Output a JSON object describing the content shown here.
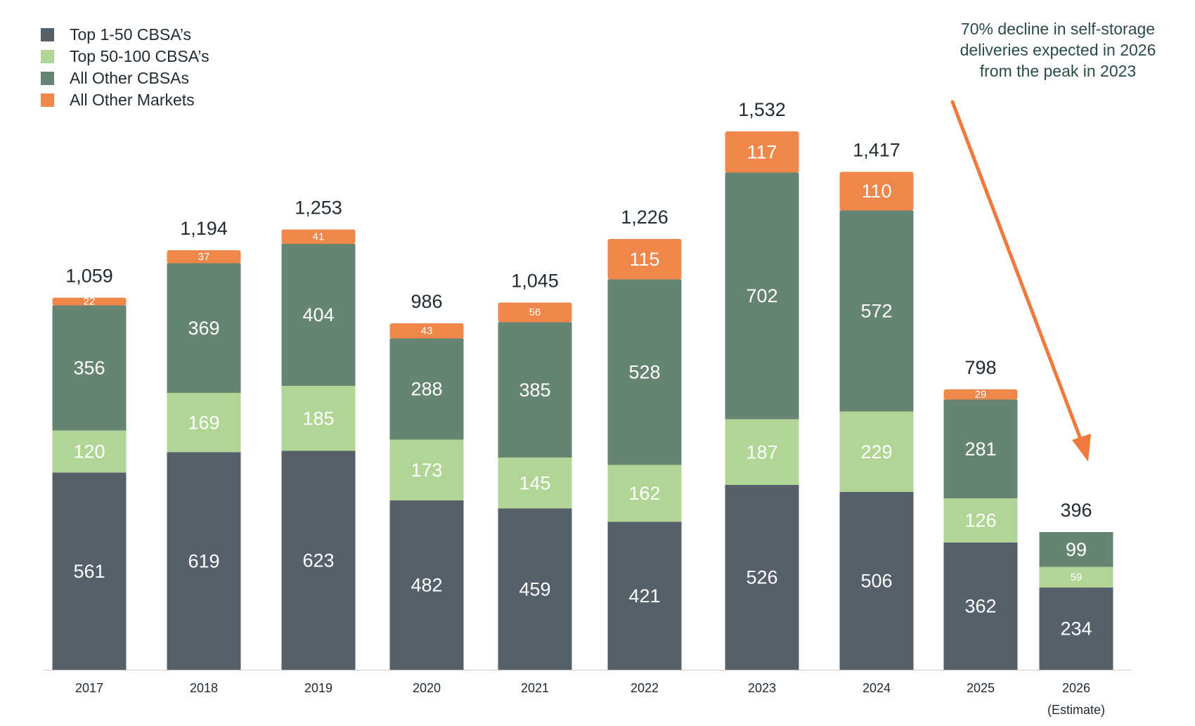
{
  "chart_data": {
    "type": "bar",
    "stacked": true,
    "title": "",
    "xlabel": "",
    "ylabel": "",
    "ylim": [
      0,
      1700
    ],
    "grid": false,
    "legend_position": "top-left",
    "categories": [
      "2017",
      "2018",
      "2019",
      "2020",
      "2021",
      "2022",
      "2023",
      "2024",
      "2025",
      "2026"
    ],
    "category_sublabels": [
      "",
      "",
      "",
      "",
      "",
      "",
      "",
      "",
      "",
      "(Estimate)"
    ],
    "series": [
      {
        "name": "Top 1-50 CBSA’s",
        "color": "#56606b",
        "values": [
          561,
          619,
          623,
          482,
          459,
          421,
          526,
          506,
          362,
          234
        ]
      },
      {
        "name": "Top 50-100 CBSA’s",
        "color": "#b1d595",
        "values": [
          120,
          169,
          185,
          173,
          145,
          162,
          187,
          229,
          126,
          59
        ]
      },
      {
        "name": "All Other CBSAs",
        "color": "#668472",
        "values": [
          356,
          369,
          404,
          288,
          385,
          528,
          702,
          572,
          281,
          99
        ]
      },
      {
        "name": "All Other Markets",
        "color": "#f0874a",
        "values": [
          22,
          37,
          41,
          43,
          56,
          115,
          117,
          110,
          29,
          null
        ]
      }
    ],
    "totals": [
      "1,059",
      "1,194",
      "1,253",
      "986",
      "1,045",
      "1,226",
      "1,532",
      "1,417",
      "798",
      "396"
    ],
    "annotation": {
      "lines": [
        "70% decline in self-storage",
        "deliveries expected in 2026",
        "from the peak in 2023"
      ],
      "arrow_color": "#f07a3c"
    }
  }
}
